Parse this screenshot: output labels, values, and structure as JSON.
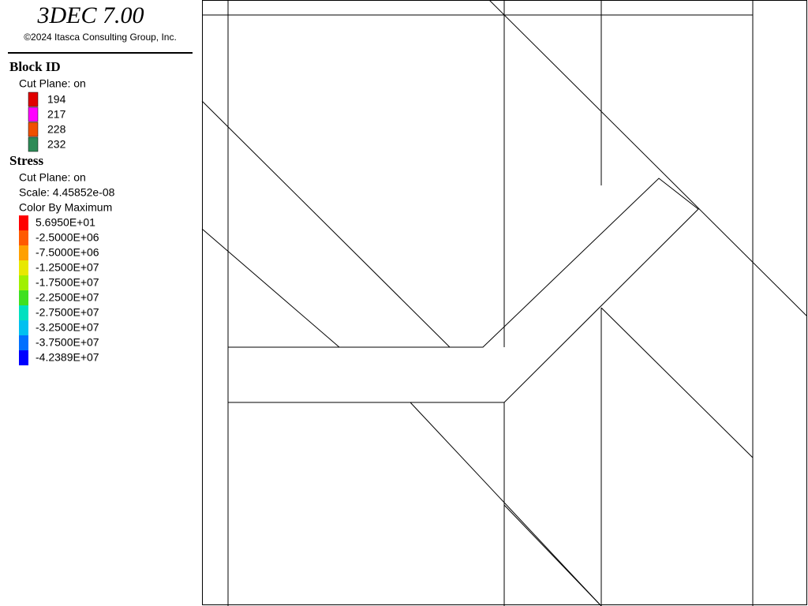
{
  "header": {
    "title": "3DEC 7.00",
    "copyright": "©2024 Itasca Consulting Group, Inc."
  },
  "block_legend": {
    "title": "Block  ID",
    "subtitle": "Cut Plane: on",
    "items": [
      {
        "label": "194",
        "color": "#e00000"
      },
      {
        "label": "217",
        "color": "#ff00ff"
      },
      {
        "label": "228",
        "color": "#f05000"
      },
      {
        "label": "232",
        "color": "#2e8b57"
      }
    ]
  },
  "stress_legend": {
    "title": "Stress",
    "lines": [
      "Cut Plane: on",
      "Scale: 4.45852e-08",
      "Color By Maximum"
    ],
    "items": [
      {
        "label": "5.6950E+01",
        "color": "#ff0000"
      },
      {
        "label": "-2.5000E+06",
        "color": "#ff5a00"
      },
      {
        "label": "-7.5000E+06",
        "color": "#ffa000"
      },
      {
        "label": "-1.2500E+07",
        "color": "#e8e800"
      },
      {
        "label": "-1.7500E+07",
        "color": "#a0f000"
      },
      {
        "label": "-2.2500E+07",
        "color": "#40e020"
      },
      {
        "label": "-2.7500E+07",
        "color": "#00e0c0"
      },
      {
        "label": "-3.2500E+07",
        "color": "#00c0f0"
      },
      {
        "label": "-3.7500E+07",
        "color": "#0070ff"
      },
      {
        "label": "-4.2389E+07",
        "color": "#0000ff"
      }
    ]
  }
}
